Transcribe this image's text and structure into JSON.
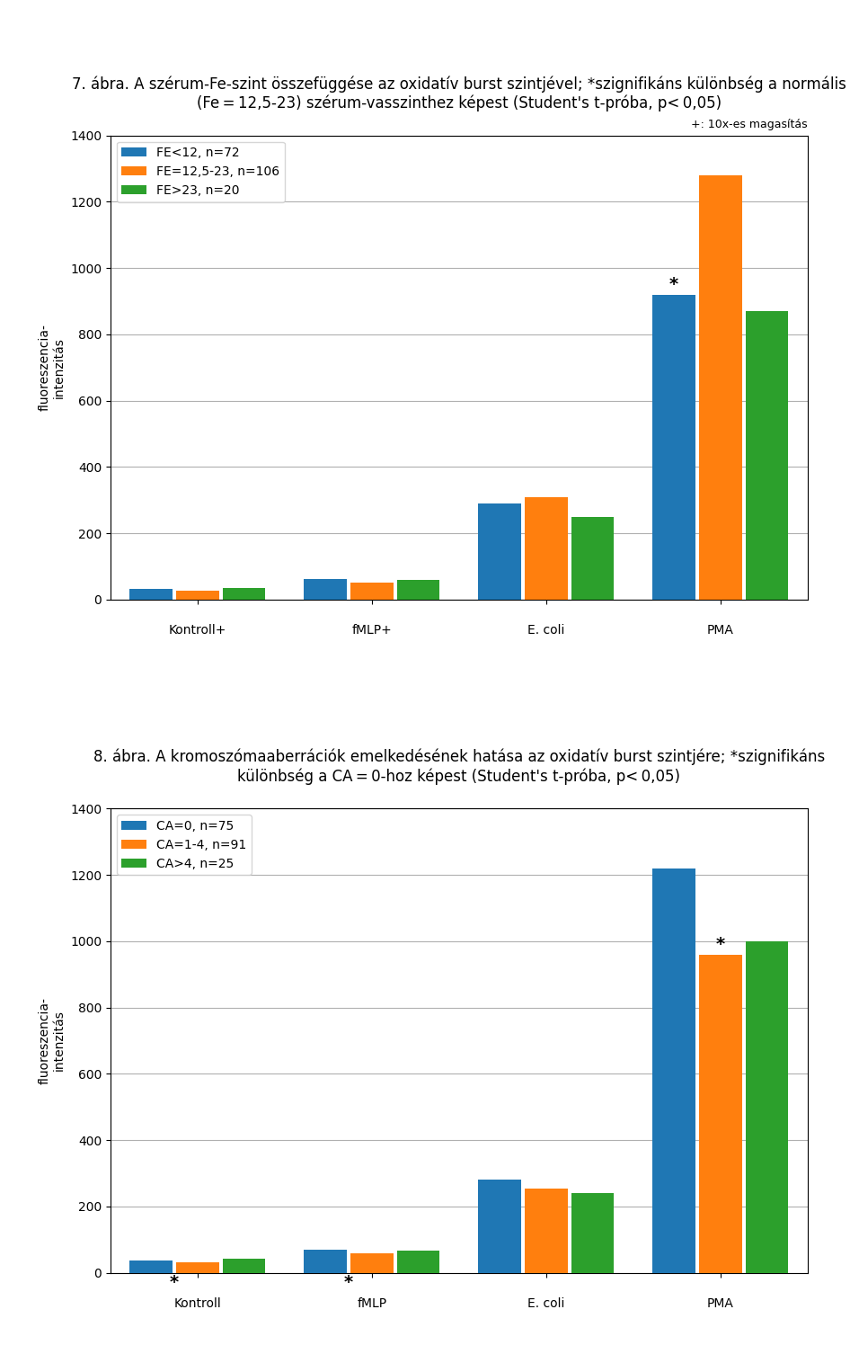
{
  "chart_data": [
    {
      "type": "bar",
      "title": "7. ábra. A szérum-Fe-szint összefüggése az oxidatív burst szintjével; *szignifikáns különbség a normális (Fe = 12,5-23) szérum-vasszinthez képest (Student's t-próba, p< 0,05)",
      "ylabel": "fluoreszencia-\nintenzitás",
      "categories": [
        "Kontroll+",
        "fMLP+",
        "E. coli",
        "PMA"
      ],
      "series": [
        {
          "name": "FE<12, n=72",
          "values": [
            32,
            62,
            290,
            920
          ]
        },
        {
          "name": "FE=12,5-23, n=106",
          "values": [
            28,
            52,
            310,
            1280
          ]
        },
        {
          "name": "FE>23, n=20",
          "values": [
            35,
            60,
            250,
            870
          ]
        }
      ],
      "ylim": [
        0,
        1400
      ],
      "yticks": [
        0,
        200,
        400,
        600,
        800,
        1000,
        1200,
        1400
      ],
      "grid": true,
      "legend": "upper left",
      "note": "+: 10x-es magasítás",
      "annotations": [
        {
          "text": "*",
          "category": "PMA",
          "series": "FE<12, n=72"
        }
      ]
    },
    {
      "type": "bar",
      "title": "8. ábra. A kromoszómaaberrációk emelkedésének hatása az oxidatív burst szintjére; *szignifikáns különbség a CA = 0-hoz képest (Student's t-próba, p< 0,05)",
      "ylabel": "fluoreszencia-\nintenzitás",
      "categories": [
        "Kontroll",
        "fMLP",
        "E. coli",
        "PMA"
      ],
      "series": [
        {
          "name": "CA=0, n=75",
          "values": [
            38,
            70,
            280,
            1220
          ]
        },
        {
          "name": "CA=1-4, n=91",
          "values": [
            32,
            58,
            255,
            960
          ]
        },
        {
          "name": "CA>4, n=25",
          "values": [
            42,
            68,
            240,
            1000
          ]
        }
      ],
      "ylim": [
        0,
        1400
      ],
      "yticks": [
        0,
        200,
        400,
        600,
        800,
        1000,
        1200,
        1400
      ],
      "grid": true,
      "legend": "upper left",
      "annotations": [
        {
          "text": "*",
          "category": "Kontroll"
        },
        {
          "text": "*",
          "category": "fMLP"
        },
        {
          "text": "*",
          "category": "PMA",
          "series": "CA=1-4, n=91"
        }
      ]
    }
  ]
}
